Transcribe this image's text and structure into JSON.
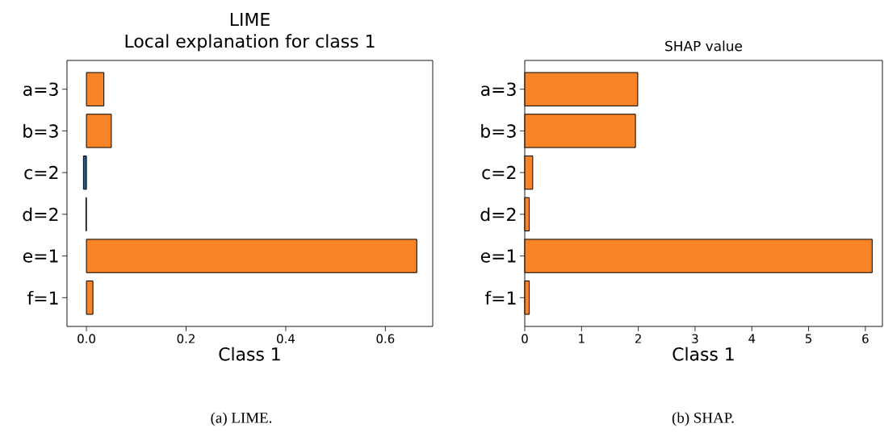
{
  "chart_data": [
    {
      "type": "bar",
      "orientation": "horizontal",
      "title": "LIME",
      "subtitle": "Local explanation for class 1",
      "xlabel": "Class 1",
      "categories": [
        "a=3",
        "b=3",
        "c=2",
        "d=2",
        "e=1",
        "f=1"
      ],
      "values": [
        0.035,
        0.05,
        -0.006,
        -0.001,
        0.663,
        0.013
      ],
      "colors": [
        "#f98327",
        "#f98327",
        "#2a5a8a",
        "#2a5a8a",
        "#f98327",
        "#f98327"
      ],
      "xlim": [
        -0.039,
        0.695
      ],
      "xticks": [
        {
          "value": 0,
          "label": "0.0"
        },
        0.2,
        0.4,
        0.6
      ],
      "annotations": [
        "(a) LIME."
      ]
    },
    {
      "type": "bar",
      "orientation": "horizontal",
      "title": "SHAP value",
      "xlabel": "Class 1",
      "categories": [
        "a=3",
        "b=3",
        "c=2",
        "d=2",
        "e=1",
        "f=1"
      ],
      "values": [
        1.99,
        1.95,
        0.14,
        0.08,
        6.12,
        0.08
      ],
      "colors": [
        "#f98327",
        "#f98327",
        "#f98327",
        "#f98327",
        "#f98327",
        "#f98327"
      ],
      "xlim": [
        0,
        6.3
      ],
      "xticks": [
        0,
        1,
        2,
        3,
        4,
        5,
        6
      ],
      "annotations": [
        "(b) SHAP."
      ]
    }
  ]
}
